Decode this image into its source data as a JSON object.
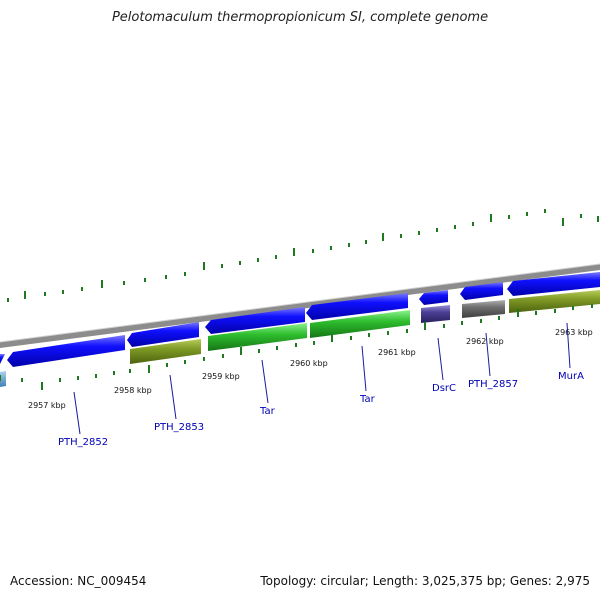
{
  "title": "Pelotomaculum thermopropionicum SI, complete genome",
  "footer": {
    "accession": "Accession: NC_009454",
    "summary": "Topology: circular; Length: 3,025,375 bp; Genes: 2,975"
  },
  "colors": {
    "backbone": "#8c8c8c",
    "gene_blue": "#0a0ae6",
    "olive": "#7f9a25",
    "green": "#2fbf2f",
    "dsrc_purple": "#4a3f93",
    "gray": "#6e6e6e",
    "tick_green": "#1f7a1f",
    "label_blue": "#0000b4",
    "leader": "#1a1aa0"
  },
  "position_labels": [
    "2957 kbp",
    "2958 kbp",
    "2959 kbp",
    "2960 kbp",
    "2961 kbp",
    "2962 kbp",
    "2963 kbp"
  ],
  "gene_labels": [
    "PTH_2852",
    "PTH_2853",
    "Tar",
    "Tar",
    "DsrC",
    "PTH_2857",
    "MurA"
  ]
}
